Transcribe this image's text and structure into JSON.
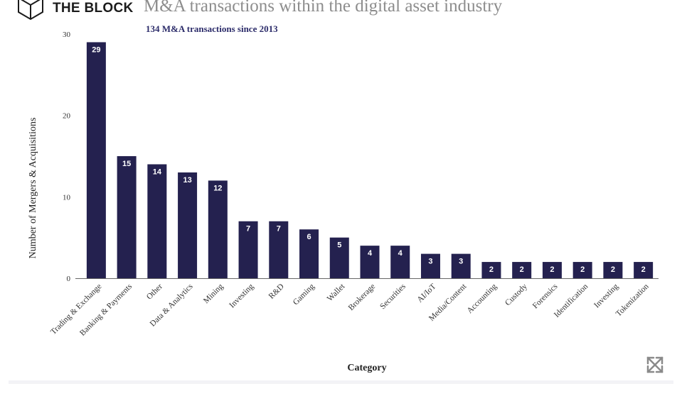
{
  "brand": {
    "name": "THE BLOCK",
    "logo_icon": "cube-logo-icon"
  },
  "chart_data": {
    "type": "bar",
    "title": "M&A transactions within the digital asset industry",
    "subtitle": "134 M&A transactions since 2013",
    "xlabel": "Category",
    "ylabel": "Number of Mergers & Acquisitions",
    "ylim": [
      0,
      30
    ],
    "yticks": [
      0,
      10,
      20,
      30
    ],
    "grid": false,
    "bar_color": "#24214f",
    "categories": [
      "Trading & Exchange",
      "Banking & Payments",
      "Other",
      "Data & Analytics",
      "Mining",
      "Investing",
      "R&D",
      "Gaming",
      "Wallet",
      "Brokerage",
      "Securities",
      "AI/IoT",
      "Media/Content",
      "Accounting",
      "Custody",
      "Forensics",
      "Identification",
      "Investing",
      "Tokenization"
    ],
    "values": [
      29,
      15,
      14,
      13,
      12,
      7,
      7,
      6,
      5,
      4,
      4,
      3,
      3,
      2,
      2,
      2,
      2,
      2,
      2
    ],
    "data_labels": [
      "29",
      "15",
      "14",
      "13",
      "12",
      "7",
      "7",
      "6",
      "5",
      "4",
      "4",
      "3",
      "3",
      "2",
      "2",
      "2",
      "2",
      "2",
      "2"
    ]
  },
  "controls": {
    "expand_icon": "expand-arrows-icon"
  }
}
